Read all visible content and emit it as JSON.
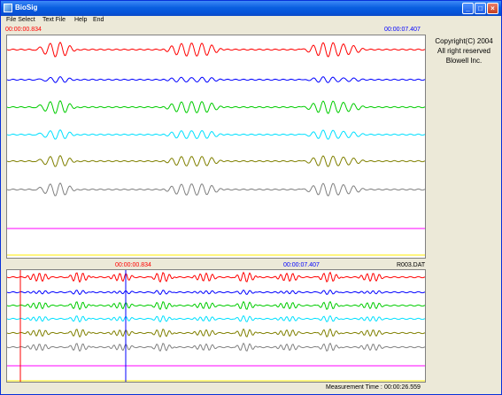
{
  "window": {
    "title": "BioSig",
    "buttons": {
      "minimize": "_",
      "maximize": "□",
      "close": "×"
    }
  },
  "menu": [
    "File Select",
    "Text File",
    "Help",
    "End"
  ],
  "upper": {
    "start_time": "00:00:00.834",
    "end_time": "00:00:07.407",
    "start_color": "#ff0000",
    "end_color": "#0000ff"
  },
  "lower": {
    "start_time": "00:00:00.834",
    "end_time": "00:00:07.407",
    "file_name": "R003.DAT"
  },
  "copyright": [
    "Copyright(C) 2004",
    "All right reserved",
    "Blowell Inc."
  ],
  "status": {
    "label": "Measurement Time :",
    "value": "00:00:26.559"
  },
  "channels": [
    {
      "color": "#ff0000"
    },
    {
      "color": "#0000ff"
    },
    {
      "color": "#00cc00"
    },
    {
      "color": "#00e0ff"
    },
    {
      "color": "#808000"
    },
    {
      "color": "#808080"
    },
    {
      "color": "#ff00ff"
    },
    {
      "color": "#ffee00"
    }
  ]
}
